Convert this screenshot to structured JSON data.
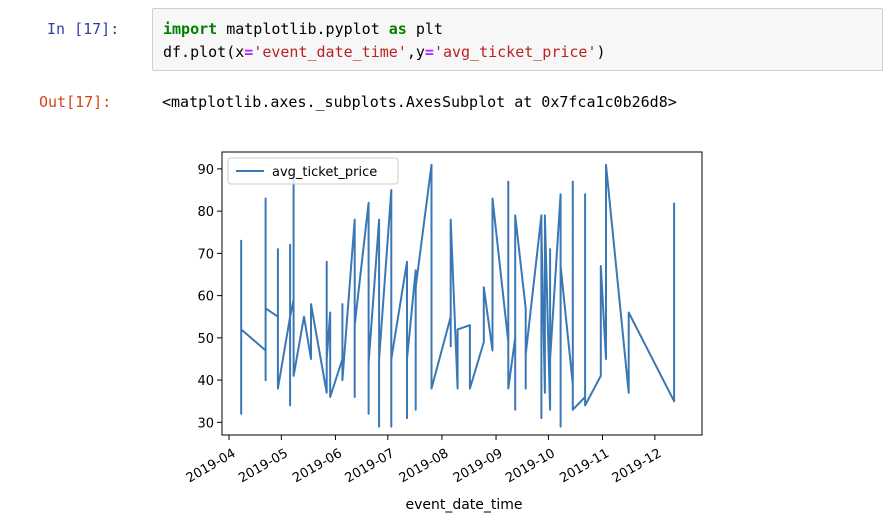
{
  "cell": {
    "in_prompt": "In [17]:",
    "code_line1": {
      "kw_import": "import",
      "module": " matplotlib.pyplot ",
      "kw_as": "as",
      "alias": " plt"
    },
    "code_line2": {
      "prefix": "df.plot(",
      "x_kw": "x",
      "eq1": "=",
      "x_val": "'event_date_time'",
      "comma": ",",
      "y_kw": "y",
      "eq2": "=",
      "y_val": "'avg_ticket_price'",
      "suffix": ")"
    },
    "out_prompt": "Out[17]:",
    "output_text": "<matplotlib.axes._subplots.AxesSubplot at 0x7fca1c0b26d8>"
  },
  "colors": {
    "series": "#3a78b5",
    "in_prompt": "#303f9f",
    "out_prompt": "#d84315",
    "keyword": "#008000",
    "string": "#ba2121"
  },
  "chart_data": {
    "type": "line",
    "xlabel": "event_date_time",
    "ylabel": "",
    "x_tick_labels": [
      "2019-04",
      "2019-05",
      "2019-06",
      "2019-07",
      "2019-08",
      "2019-09",
      "2019-10",
      "2019-11",
      "2019-12"
    ],
    "y_ticks": [
      30,
      40,
      50,
      60,
      70,
      80,
      90
    ],
    "ylim": [
      27,
      94
    ],
    "xlim": [
      "2019-03-28",
      "2019-12-28"
    ],
    "legend": {
      "entries": [
        "avg_ticket_price"
      ],
      "position": "upper left"
    },
    "grid": false,
    "series": [
      {
        "name": "avg_ticket_price",
        "x": [
          "2019-04-08",
          "2019-04-08",
          "2019-04-08",
          "2019-04-08",
          "2019-04-22",
          "2019-04-22",
          "2019-04-22",
          "2019-04-22",
          "2019-04-29",
          "2019-04-29",
          "2019-04-29",
          "2019-05-06",
          "2019-05-06",
          "2019-05-06",
          "2019-05-06",
          "2019-05-08",
          "2019-05-08",
          "2019-05-08",
          "2019-05-14",
          "2019-05-18",
          "2019-05-18",
          "2019-05-27",
          "2019-05-27",
          "2019-05-27",
          "2019-05-29",
          "2019-05-29",
          "2019-06-05",
          "2019-06-05",
          "2019-06-05",
          "2019-06-12",
          "2019-06-12",
          "2019-06-12",
          "2019-06-20",
          "2019-06-20",
          "2019-06-20",
          "2019-06-26",
          "2019-06-26",
          "2019-06-26",
          "2019-07-03",
          "2019-07-03",
          "2019-07-03",
          "2019-07-12",
          "2019-07-12",
          "2019-07-12",
          "2019-07-17",
          "2019-07-17",
          "2019-07-17",
          "2019-07-26",
          "2019-07-26",
          "2019-08-06",
          "2019-08-06",
          "2019-08-06",
          "2019-08-10",
          "2019-08-10",
          "2019-08-17",
          "2019-08-17",
          "2019-08-25",
          "2019-08-25",
          "2019-08-30",
          "2019-08-30",
          "2019-09-08",
          "2019-09-08",
          "2019-09-08",
          "2019-09-12",
          "2019-09-12",
          "2019-09-12",
          "2019-09-18",
          "2019-09-18",
          "2019-09-18",
          "2019-09-27",
          "2019-09-27",
          "2019-09-27",
          "2019-09-29",
          "2019-09-29",
          "2019-10-02",
          "2019-10-02",
          "2019-10-02",
          "2019-10-08",
          "2019-10-08",
          "2019-10-08",
          "2019-10-15",
          "2019-10-15",
          "2019-10-15",
          "2019-10-22",
          "2019-10-22",
          "2019-10-22",
          "2019-10-31",
          "2019-10-31",
          "2019-11-03",
          "2019-11-03",
          "2019-11-16",
          "2019-11-16",
          "2019-12-12",
          "2019-12-12"
        ],
        "y": [
          52,
          73,
          32,
          52,
          47,
          83,
          40,
          57,
          55,
          71,
          38,
          55,
          34,
          72,
          55,
          59,
          88,
          41,
          55,
          45,
          58,
          37,
          68,
          45,
          56,
          36,
          45,
          58,
          40,
          78,
          36,
          53,
          82,
          32,
          44,
          78,
          29,
          45,
          85,
          29,
          45,
          68,
          31,
          45,
          66,
          33,
          62,
          91,
          38,
          55,
          48,
          78,
          38,
          52,
          53,
          38,
          49,
          62,
          47,
          83,
          49,
          87,
          38,
          50,
          33,
          79,
          57,
          38,
          46,
          79,
          31,
          76,
          37,
          79,
          33,
          71,
          45,
          84,
          29,
          67,
          39,
          87,
          33,
          36,
          84,
          34,
          41,
          67,
          45,
          91,
          37,
          56,
          35,
          82
        ]
      }
    ]
  }
}
